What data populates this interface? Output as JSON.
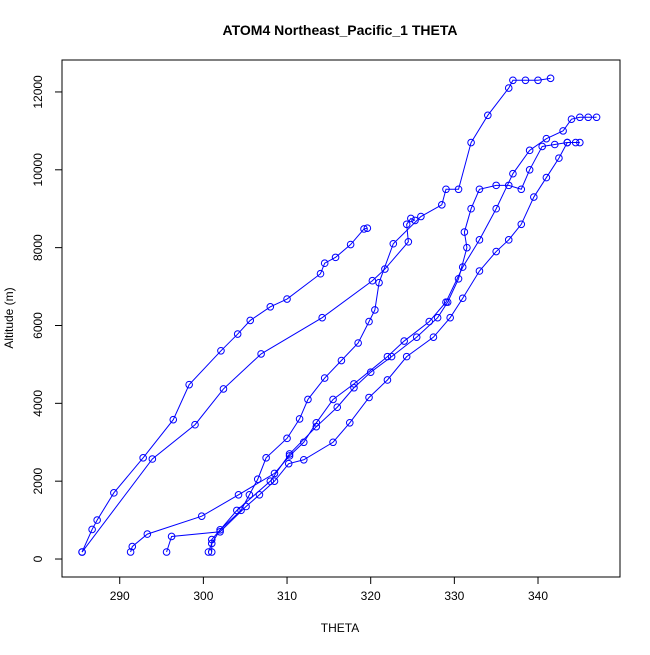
{
  "chart_data": {
    "type": "line",
    "title": "ATOM4 Northeast_Pacific_1 THETA",
    "x_label": "THETA",
    "y_label": "Altitude (m)",
    "xlim": [
      283.1,
      349.8
    ],
    "ylim": [
      -462,
      12821
    ],
    "xticks": [
      290,
      300,
      310,
      320,
      330,
      340
    ],
    "yticks": [
      0,
      2000,
      4000,
      6000,
      8000,
      10000,
      12000
    ],
    "series": [
      {
        "color": "#0000ff",
        "x": [
          285.5,
          286.7,
          287.3,
          289.3,
          292.8,
          296.4,
          298.3,
          302.1,
          304.1,
          305.6,
          308,
          310,
          314,
          314.5,
          315.8,
          317.6,
          319.2,
          319.6
        ],
        "values": [
          180,
          760,
          1000,
          1700,
          2600,
          3580,
          4480,
          5350,
          5780,
          6130,
          6480,
          6680,
          7330,
          7600,
          7750,
          8080,
          8480,
          8500
        ]
      },
      {
        "color": "#0000ff",
        "x": [
          285.5,
          293.9,
          299,
          302.4,
          306.9,
          314.2,
          320.2,
          321.7,
          324.5,
          324.3,
          324.8,
          325.3
        ],
        "values": [
          180,
          2570,
          3450,
          4370,
          5270,
          6200,
          7150,
          7450,
          8150,
          8600,
          8750,
          8700
        ]
      },
      {
        "color": "#0000ff",
        "x": [
          300.6,
          301,
          302,
          304.5,
          305.5,
          306.5,
          307.5,
          310,
          311.5,
          312.5,
          314.5,
          316.5,
          318.5,
          319.8,
          320.5,
          321,
          322.7,
          326,
          328.5,
          329,
          330.5,
          332,
          334,
          336.5,
          337,
          338.5,
          340,
          341.5
        ],
        "values": [
          180,
          400,
          750,
          1250,
          1650,
          2050,
          2600,
          3100,
          3600,
          4100,
          4650,
          5100,
          5550,
          6100,
          6400,
          7100,
          8100,
          8800,
          9100,
          9500,
          9500,
          10700,
          11400,
          12100,
          12300,
          12300,
          12300,
          12350
        ]
      },
      {
        "color": "#0000ff",
        "x": [
          291.3,
          291.5,
          293.3,
          299.8,
          304.2,
          308.5,
          310.3,
          312,
          313.5,
          315.5,
          318,
          322,
          324,
          327,
          329,
          331,
          333,
          335,
          337,
          339,
          341,
          343,
          344,
          345,
          346,
          347
        ],
        "values": [
          180,
          320,
          640,
          1100,
          1650,
          2200,
          2650,
          3000,
          3500,
          4100,
          4500,
          5200,
          5600,
          6100,
          6600,
          7500,
          8200,
          9000,
          9900,
          10500,
          10800,
          11000,
          11300,
          11350,
          11350,
          11350
        ]
      },
      {
        "color": "#0000ff",
        "x": [
          295.6,
          296.2,
          302,
          305.1,
          306.7,
          308.5,
          310.2,
          312,
          315.5,
          317.5,
          319.8,
          322,
          324.3,
          327.5,
          329.5,
          331,
          333,
          335,
          336.5,
          338,
          339.5,
          341,
          342.5,
          343.5,
          344.5,
          345
        ],
        "values": [
          180,
          580,
          700,
          1350,
          1650,
          2000,
          2450,
          2550,
          3000,
          3500,
          4150,
          4600,
          5200,
          5700,
          6200,
          6700,
          7400,
          7900,
          8200,
          8600,
          9300,
          9800,
          10300,
          10700,
          10700,
          10700
        ]
      },
      {
        "color": "#0000ff",
        "x": [
          301,
          301,
          304,
          308,
          310.3,
          313.5,
          316,
          318,
          320,
          322.5,
          325.5,
          328,
          329.2,
          330.5,
          331.5,
          331.2,
          332,
          333,
          335,
          336.5,
          338,
          339,
          340.5,
          342,
          343.5
        ],
        "values": [
          180,
          500,
          1250,
          2000,
          2700,
          3400,
          3900,
          4400,
          4800,
          5200,
          5700,
          6200,
          6600,
          7200,
          8000,
          8400,
          9000,
          9500,
          9600,
          9600,
          9500,
          10000,
          10600,
          10650,
          10700
        ]
      }
    ]
  }
}
